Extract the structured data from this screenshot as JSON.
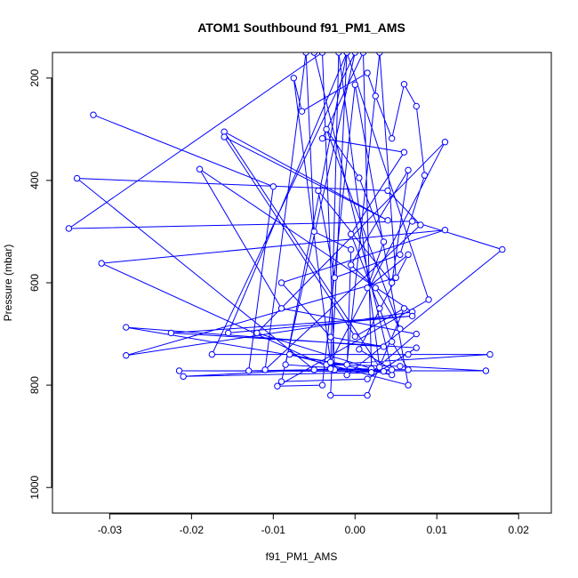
{
  "chart_data": {
    "type": "line",
    "title": "ATOM1 Southbound f91_PM1_AMS",
    "xlabel": "f91_PM1_AMS",
    "ylabel": "Pressure (mbar)",
    "xlim": [
      -0.037,
      0.024
    ],
    "ylim": [
      1050,
      150
    ],
    "y_reversed": true,
    "x_ticks": [
      -0.03,
      -0.02,
      -0.01,
      0.0,
      0.01,
      0.02
    ],
    "x_tick_labels": [
      "-0.03",
      "-0.02",
      "-0.01",
      "0.00",
      "0.01",
      "0.02"
    ],
    "y_ticks": [
      200,
      400,
      600,
      800,
      1000
    ],
    "y_tick_labels": [
      "200",
      "400",
      "600",
      "800",
      "1000"
    ],
    "series_color": "#0000ff",
    "series": [
      {
        "points": [
          [
            -0.032,
            272
          ],
          [
            -0.01,
            412
          ],
          [
            -0.013,
            772
          ],
          [
            0.002,
            768
          ],
          [
            0.001,
            150
          ],
          [
            -0.004,
            318
          ],
          [
            0.006,
            345
          ],
          [
            -0.0005,
            505
          ],
          [
            0.003,
            650
          ],
          [
            0.0045,
            715
          ],
          [
            0.0065,
            770
          ],
          [
            -0.005,
            770
          ],
          [
            -0.034,
            396
          ],
          [
            0.004,
            420
          ],
          [
            0.008,
            487
          ],
          [
            -0.011,
            770
          ],
          [
            -0.006,
            150
          ],
          [
            -0.005,
            500
          ],
          [
            -0.0005,
            535
          ],
          [
            -0.001,
            780
          ],
          [
            0.018,
            535
          ],
          [
            0.007,
            480
          ],
          [
            -0.035,
            494
          ],
          [
            -0.004,
            150
          ],
          [
            -0.0025,
            770
          ],
          [
            -0.031,
            562
          ],
          [
            0.011,
            497
          ],
          [
            -0.009,
            600
          ],
          [
            -0.003,
            706
          ],
          [
            0.0035,
            725
          ],
          [
            -0.028,
            687
          ],
          [
            -0.001,
            760
          ],
          [
            0.003,
            150
          ],
          [
            0.005,
            590
          ],
          [
            -0.028,
            742
          ],
          [
            0.007,
            657
          ],
          [
            -0.019,
            378
          ],
          [
            -0.009,
            650
          ],
          [
            0.0075,
            700
          ],
          [
            0.002,
            775
          ],
          [
            -0.021,
            783
          ],
          [
            -0.003,
            768
          ],
          [
            -0.002,
            150
          ],
          [
            0.003,
            765
          ],
          [
            -0.016,
            305
          ],
          [
            0.004,
            478
          ],
          [
            -0.016,
            315
          ],
          [
            0.0,
            705
          ],
          [
            0.006,
            650
          ],
          [
            0.0015,
            820
          ],
          [
            -0.003,
            820
          ],
          [
            -0.001,
            150
          ],
          [
            -0.0155,
            698
          ],
          [
            0.007,
            665
          ],
          [
            -0.0225,
            698
          ],
          [
            0.0075,
            727
          ],
          [
            0.0015,
            788
          ],
          [
            -0.009,
            793
          ],
          [
            0.0,
            150
          ],
          [
            -0.0175,
            740
          ],
          [
            0.0065,
            740
          ],
          [
            0.0165,
            740
          ],
          [
            -0.0035,
            760
          ],
          [
            0.0055,
            763
          ],
          [
            0.016,
            772
          ],
          [
            -0.0215,
            772
          ],
          [
            0.0035,
            773
          ],
          [
            -0.0085,
            760
          ],
          [
            -0.001,
            150
          ],
          [
            0.009,
            633
          ],
          [
            -0.0095,
            802
          ],
          [
            -0.004,
            800
          ],
          [
            0.0,
            213
          ],
          [
            0.0065,
            800
          ],
          [
            -0.008,
            740
          ],
          [
            0.0045,
            780
          ],
          [
            -0.012,
            698
          ],
          [
            0.011,
            325
          ],
          [
            -0.003,
            755
          ],
          [
            -0.0075,
            200
          ],
          [
            -0.0065,
            265
          ],
          [
            0.0015,
            190
          ],
          [
            0.0025,
            235
          ],
          [
            0.0045,
            318
          ],
          [
            0.006,
            212
          ],
          [
            0.0075,
            255
          ],
          [
            0.0085,
            390
          ],
          [
            0.0055,
            545
          ],
          [
            -0.0025,
            590
          ],
          [
            -0.0045,
            420
          ],
          [
            0.0045,
            600
          ],
          [
            0.0065,
            380
          ],
          [
            -0.0005,
            565
          ],
          [
            0.0025,
            610
          ],
          [
            0.0055,
            690
          ],
          [
            -0.0035,
            300
          ],
          [
            0.0005,
            395
          ],
          [
            0.0035,
            520
          ],
          [
            0.0015,
            610
          ],
          [
            0.0065,
            545
          ],
          [
            0.0005,
            730
          ],
          [
            0.0045,
            770
          ],
          [
            -0.005,
            150
          ]
        ]
      }
    ]
  }
}
